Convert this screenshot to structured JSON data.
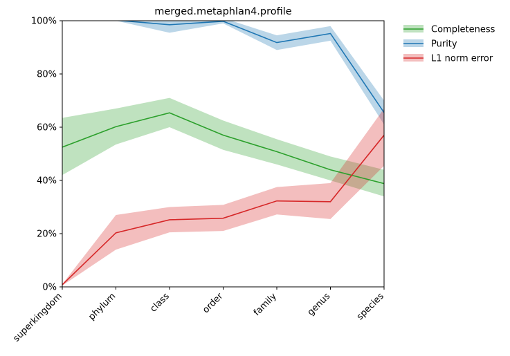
{
  "chart_data": {
    "type": "line",
    "title": "merged.metaphlan4.profile",
    "categories": [
      "superkingdom",
      "phylum",
      "class",
      "order",
      "family",
      "genus",
      "species"
    ],
    "ylim": [
      0,
      100
    ],
    "yticks": [
      "0%",
      "20%",
      "40%",
      "60%",
      "80%",
      "100%"
    ],
    "ytick_values": [
      0,
      20,
      40,
      60,
      80,
      100
    ],
    "grid": false,
    "legend_position": "outside-top-right",
    "series": [
      {
        "name": "Completeness",
        "color": "#2ca02c",
        "band_color": "#2ca02c",
        "values": [
          52.5,
          60.2,
          65.4,
          57.0,
          50.8,
          44.0,
          38.8
        ],
        "lower": [
          42.0,
          53.5,
          60.0,
          51.5,
          46.0,
          40.0,
          34.0
        ],
        "upper": [
          63.5,
          67.0,
          71.0,
          62.5,
          55.5,
          49.0,
          44.0
        ]
      },
      {
        "name": "Purity",
        "color": "#1f77b4",
        "band_color": "#1f77b4",
        "values": [
          101.0,
          100.2,
          98.5,
          99.8,
          91.8,
          95.2,
          65.5
        ],
        "lower": [
          101.0,
          100.0,
          95.5,
          99.0,
          89.0,
          92.5,
          61.0
        ],
        "upper": [
          101.0,
          101.0,
          101.0,
          101.0,
          94.5,
          98.0,
          70.0
        ]
      },
      {
        "name": "L1 norm error",
        "color": "#d62728",
        "band_color": "#d62728",
        "values": [
          0.8,
          20.3,
          25.2,
          25.8,
          32.3,
          32.0,
          57.0
        ],
        "lower": [
          0.5,
          14.0,
          20.5,
          21.0,
          27.2,
          25.5,
          45.5
        ],
        "upper": [
          1.0,
          27.0,
          30.0,
          30.8,
          37.5,
          39.0,
          67.0
        ]
      }
    ]
  }
}
